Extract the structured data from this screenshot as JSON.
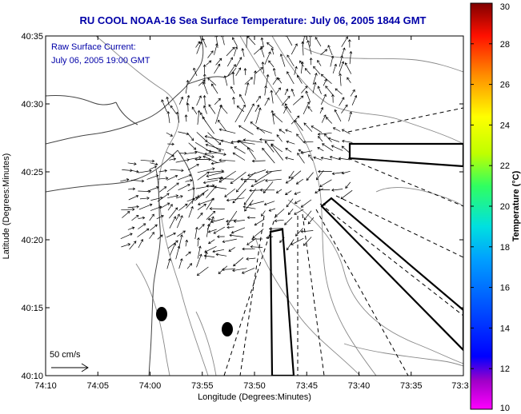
{
  "title": "RU COOL  NOAA-16  Sea Surface Temperature:  July 06, 2005 1844 GMT",
  "annotation": {
    "line1": "Raw Surface Current:",
    "line2": "July 06, 2005 19:00 GMT"
  },
  "scale_label": "50 cm/s",
  "axes": {
    "xlabel": "Longitude (Degrees:Minutes)",
    "ylabel": "Latitude (Degrees:Minutes)",
    "x_ticks": [
      "74:10",
      "74:05",
      "74:00",
      "73:55",
      "73:50",
      "73:45",
      "73:40",
      "73:35",
      "73:3"
    ],
    "y_ticks": [
      "40:35",
      "40:30",
      "40:25",
      "40:20",
      "40:15",
      "40:10"
    ]
  },
  "colorbar": {
    "label": "Temperature (°C)",
    "min": 10,
    "max": 30,
    "ticks": [
      "10",
      "12",
      "14",
      "16",
      "18",
      "20",
      "22",
      "24",
      "26",
      "28",
      "30"
    ],
    "colormap": "jet"
  },
  "chart_data": {
    "type": "map",
    "title": "RU COOL  NOAA-16  Sea Surface Temperature:  July 06, 2005 1844 GMT",
    "xlabel": "Longitude (Degrees:Minutes)",
    "ylabel": "Latitude (Degrees:Minutes)",
    "xlim": [
      "74:10 W",
      "73:30 W"
    ],
    "ylim": [
      "40:10 N",
      "40:35 N"
    ],
    "layers": [
      "coastline",
      "bathymetry contours",
      "surface current vectors",
      "shipping lane boundaries"
    ],
    "current_scale_cm_s": 50,
    "colorbar_range_C": [
      10,
      30
    ]
  }
}
